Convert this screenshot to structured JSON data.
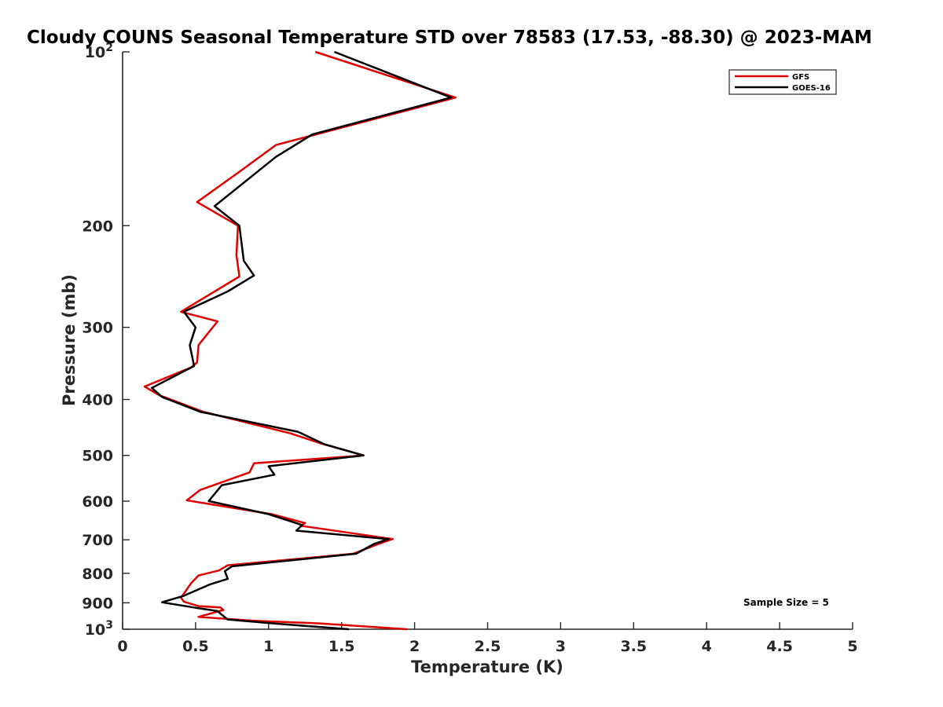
{
  "chart_data": {
    "type": "line",
    "title": "Cloudy COUNS Seasonal Temperature STD over 78583 (17.53, -88.30) @ 2023-MAM",
    "xlabel": "Temperature (K)",
    "ylabel": "Pressure (mb)",
    "xlim": [
      0,
      5
    ],
    "ylim": [
      100,
      1000
    ],
    "yscale": "log",
    "y_reversed": true,
    "x_ticks": [
      0,
      0.5,
      1,
      1.5,
      2,
      2.5,
      3,
      3.5,
      4,
      4.5,
      5
    ],
    "x_tick_labels": [
      "0",
      "0.5",
      "1",
      "1.5",
      "2",
      "2.5",
      "3",
      "3.5",
      "4",
      "4.5",
      "5"
    ],
    "y_ticks": [
      100,
      200,
      300,
      400,
      500,
      600,
      700,
      800,
      900,
      1000
    ],
    "y_tick_labels": [
      {
        "base": "10",
        "exp": "2"
      },
      {
        "base": "200",
        "exp": ""
      },
      {
        "base": "300",
        "exp": ""
      },
      {
        "base": "400",
        "exp": ""
      },
      {
        "base": "500",
        "exp": ""
      },
      {
        "base": "600",
        "exp": ""
      },
      {
        "base": "700",
        "exp": ""
      },
      {
        "base": "800",
        "exp": ""
      },
      {
        "base": "900",
        "exp": ""
      },
      {
        "base": "10",
        "exp": "3"
      }
    ],
    "legend_position": "top-right",
    "annotation": "Sample Size = 5",
    "series": [
      {
        "name": "GFS",
        "color": "#e00000",
        "x": [
          1.32,
          2.28,
          1.05,
          0.79,
          0.51,
          0.79,
          0.78,
          0.8,
          0.4,
          0.65,
          0.52,
          0.51,
          0.47,
          0.15,
          0.25,
          0.55,
          1.15,
          1.35,
          1.65,
          0.9,
          0.87,
          0.53,
          0.44,
          1.02,
          1.25,
          1.22,
          1.85,
          1.75,
          1.58,
          0.72,
          0.66,
          0.52,
          0.47,
          0.4,
          0.42,
          0.52,
          0.67,
          0.69,
          0.52,
          0.88,
          1.35,
          1.95
        ],
        "y": [
          100,
          120,
          145,
          162,
          182,
          200,
          225,
          245,
          282,
          293,
          322,
          345,
          352,
          380,
          393,
          420,
          458,
          476,
          500,
          516,
          535,
          574,
          598,
          632,
          655,
          662,
          698,
          712,
          740,
          775,
          791,
          807,
          832,
          882,
          896,
          912,
          917,
          926,
          952,
          966,
          977,
          1000
        ]
      },
      {
        "name": "GOES-16",
        "color": "#000000",
        "x": [
          1.45,
          2.25,
          1.3,
          1.05,
          0.63,
          0.8,
          0.83,
          0.9,
          0.72,
          0.42,
          0.5,
          0.46,
          0.49,
          0.2,
          0.27,
          0.53,
          1.2,
          1.38,
          1.65,
          1.0,
          1.04,
          0.68,
          0.59,
          1.0,
          1.23,
          1.19,
          1.82,
          1.72,
          1.6,
          0.75,
          0.7,
          0.72,
          0.6,
          0.42,
          0.27,
          0.5,
          0.65,
          0.67,
          0.72,
          1.05,
          1.55
        ],
        "y": [
          100,
          120,
          139,
          152,
          185,
          200,
          230,
          244,
          260,
          282,
          300,
          322,
          350,
          382,
          396,
          420,
          455,
          478,
          500,
          522,
          540,
          563,
          600,
          632,
          660,
          675,
          698,
          712,
          740,
          778,
          793,
          818,
          836,
          875,
          898,
          918,
          930,
          940,
          962,
          978,
          1000
        ]
      }
    ]
  }
}
